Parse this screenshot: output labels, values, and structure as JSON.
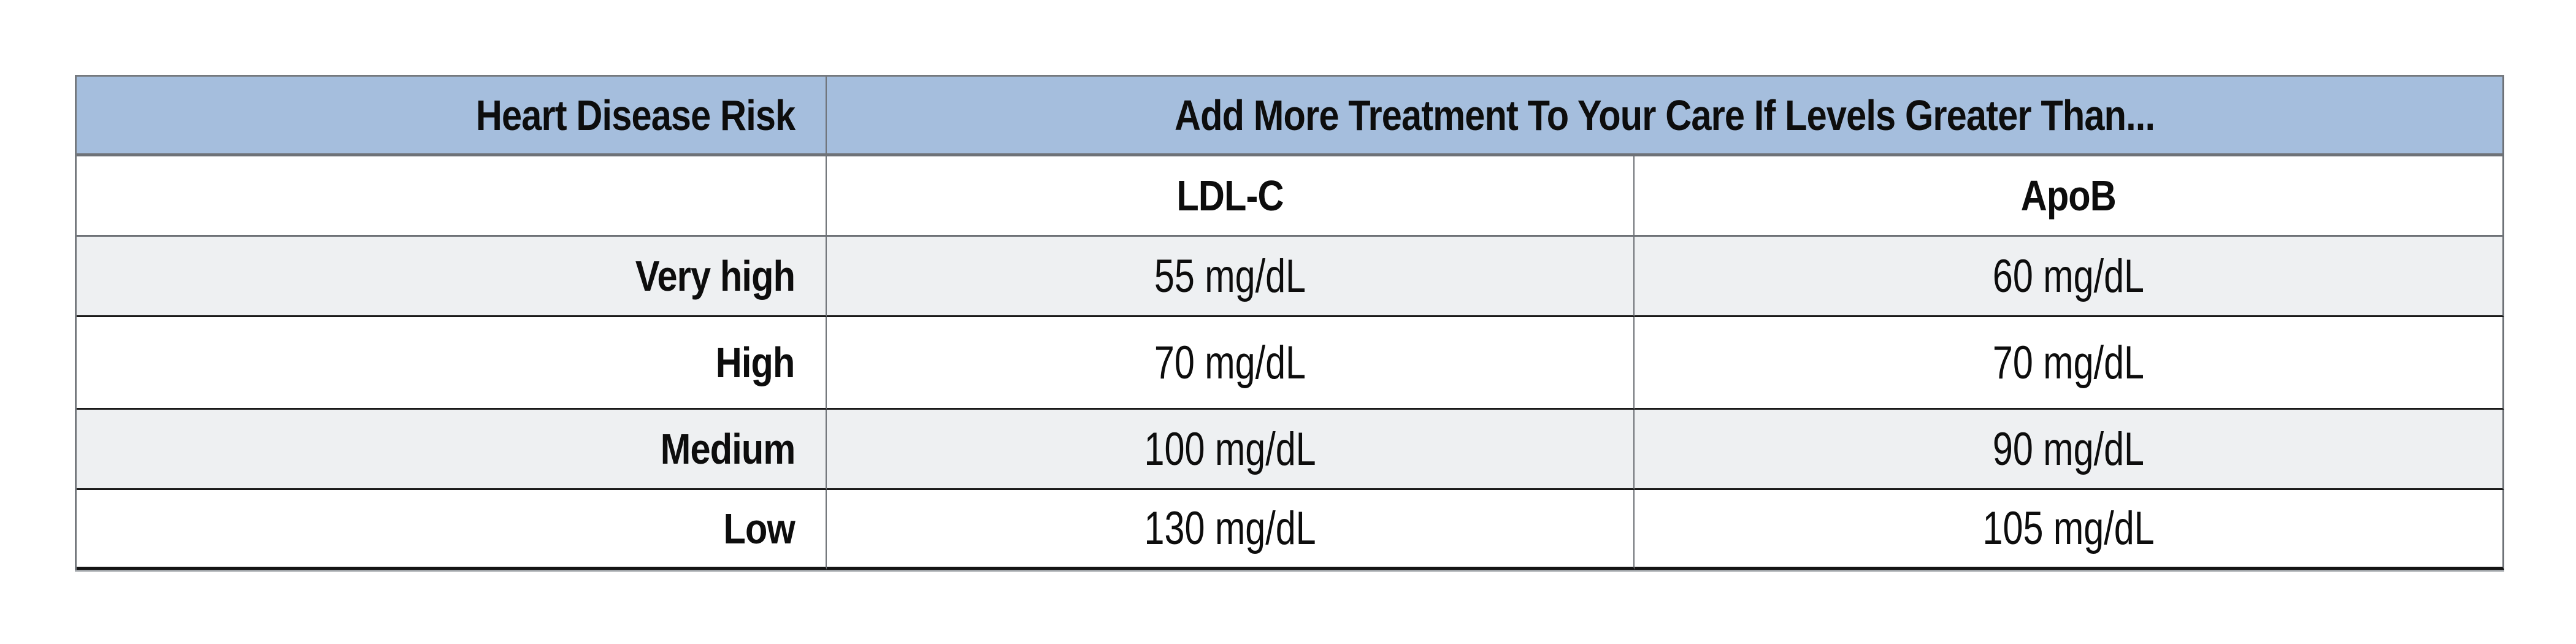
{
  "table": {
    "title_header": {
      "risk_column_label": "Heart Disease Risk",
      "treatment_header_label": "Add More Treatment To Your Care If Levels Greater Than..."
    },
    "column_headers": {
      "ldl": "LDL-C",
      "apob": "ApoB"
    },
    "rows": [
      {
        "risk": "Very high",
        "ldl": "55 mg/dL",
        "apob": "60 mg/dL"
      },
      {
        "risk": "High",
        "ldl": "70 mg/dL",
        "apob": "70 mg/dL"
      },
      {
        "risk": "Medium",
        "ldl": "100 mg/dL",
        "apob": "90 mg/dL"
      },
      {
        "risk": "Low",
        "ldl": "130 mg/dL",
        "apob": "105 mg/dL"
      }
    ],
    "colors": {
      "header_bg": "#a5bedd",
      "stripe_bg": "#eef0f2",
      "border_gray": "#6e7277",
      "border_dark": "#1a1a1a",
      "text": "#0d0d0d",
      "page_bg": "#ffffff"
    }
  }
}
